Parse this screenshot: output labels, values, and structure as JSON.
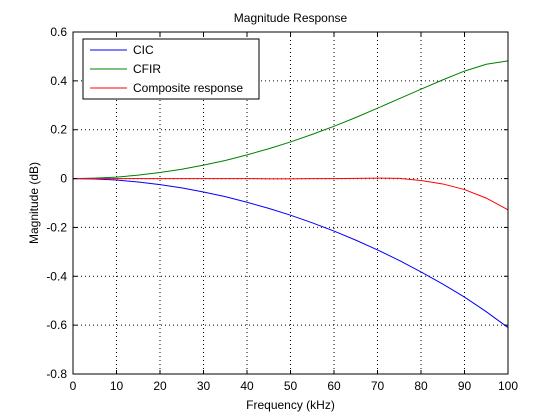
{
  "chart_data": {
    "type": "line",
    "title": "Magnitude Response",
    "xlabel": "Frequency (kHz)",
    "ylabel": "Magnitude (dB)",
    "xlim": [
      0,
      100
    ],
    "ylim": [
      -0.8,
      0.6
    ],
    "xticks": [
      0,
      10,
      20,
      30,
      40,
      50,
      60,
      70,
      80,
      90,
      100
    ],
    "xtick_labels": [
      "0",
      "10",
      "20",
      "30",
      "40",
      "50",
      "60",
      "70",
      "80",
      "90",
      "100"
    ],
    "yticks": [
      -0.8,
      -0.6,
      -0.4,
      -0.2,
      0,
      0.2,
      0.4,
      0.6
    ],
    "ytick_labels": [
      "-0.8",
      "-0.6",
      "-0.4",
      "-0.2",
      "0",
      "0.2",
      "0.4",
      "0.6"
    ],
    "grid": true,
    "legend_position": "top-left",
    "x": [
      0,
      5,
      10,
      15,
      20,
      25,
      30,
      35,
      40,
      45,
      50,
      55,
      60,
      65,
      70,
      75,
      80,
      85,
      90,
      95,
      100
    ],
    "series": [
      {
        "name": "CIC",
        "color": "#0000ff",
        "values": [
          0,
          -0.002,
          -0.006,
          -0.014,
          -0.025,
          -0.038,
          -0.055,
          -0.074,
          -0.097,
          -0.122,
          -0.15,
          -0.181,
          -0.215,
          -0.252,
          -0.292,
          -0.335,
          -0.382,
          -0.432,
          -0.485,
          -0.545,
          -0.61
        ]
      },
      {
        "name": "CFIR",
        "color": "#008000",
        "values": [
          0,
          0.002,
          0.006,
          0.014,
          0.025,
          0.038,
          0.055,
          0.074,
          0.097,
          0.122,
          0.15,
          0.181,
          0.214,
          0.25,
          0.288,
          0.327,
          0.366,
          0.404,
          0.44,
          0.468,
          0.482
        ]
      },
      {
        "name": "Composite response",
        "color": "#ff0000",
        "values": [
          0,
          0,
          0,
          0,
          0,
          0,
          0,
          0,
          0,
          -0.001,
          -0.001,
          0,
          0,
          0.001,
          0.002,
          0.001,
          -0.008,
          -0.022,
          -0.045,
          -0.08,
          -0.128
        ]
      }
    ]
  }
}
